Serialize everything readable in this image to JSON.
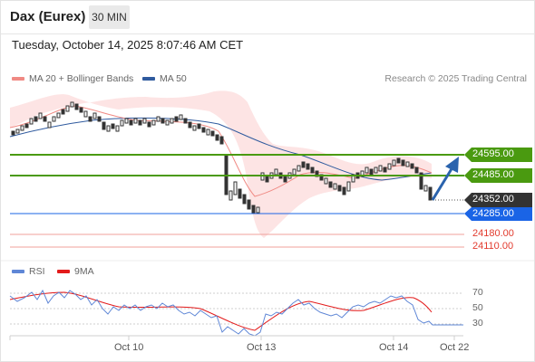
{
  "header": {
    "title": "Dax (Eurex)",
    "timeframe": "30 MIN"
  },
  "datetime": "Tuesday, October 14, 2025 8:07:46 AM CET",
  "legend": {
    "ma20_label": "MA 20 + Bollinger Bands",
    "ma50_label": "MA 50",
    "ma20_color": "#f08a84",
    "ma50_color": "#2f5a9e"
  },
  "credit": "Research © 2025 Trading Central",
  "price_levels": {
    "r2": "24595.00",
    "r1": "24485.00",
    "last": "24352.00",
    "pivot": "24285.00",
    "s1": "24180.00",
    "s2": "24110.00"
  },
  "colors": {
    "resistance": "#4a9a10",
    "pivot": "#1a64e6",
    "support": "#e23b2e",
    "last": "#333333",
    "arrow": "#2a63ad"
  },
  "rsi_panel": {
    "rsi_label": "RSI",
    "ma_label": "9MA",
    "rsi_color": "#5f87d6",
    "ma_color": "#e31b1b",
    "levels": [
      "70",
      "50",
      "30"
    ]
  },
  "x_axis": {
    "labels": [
      "Oct 10",
      "Oct 13",
      "Oct 14",
      "Oct 22"
    ]
  }
}
